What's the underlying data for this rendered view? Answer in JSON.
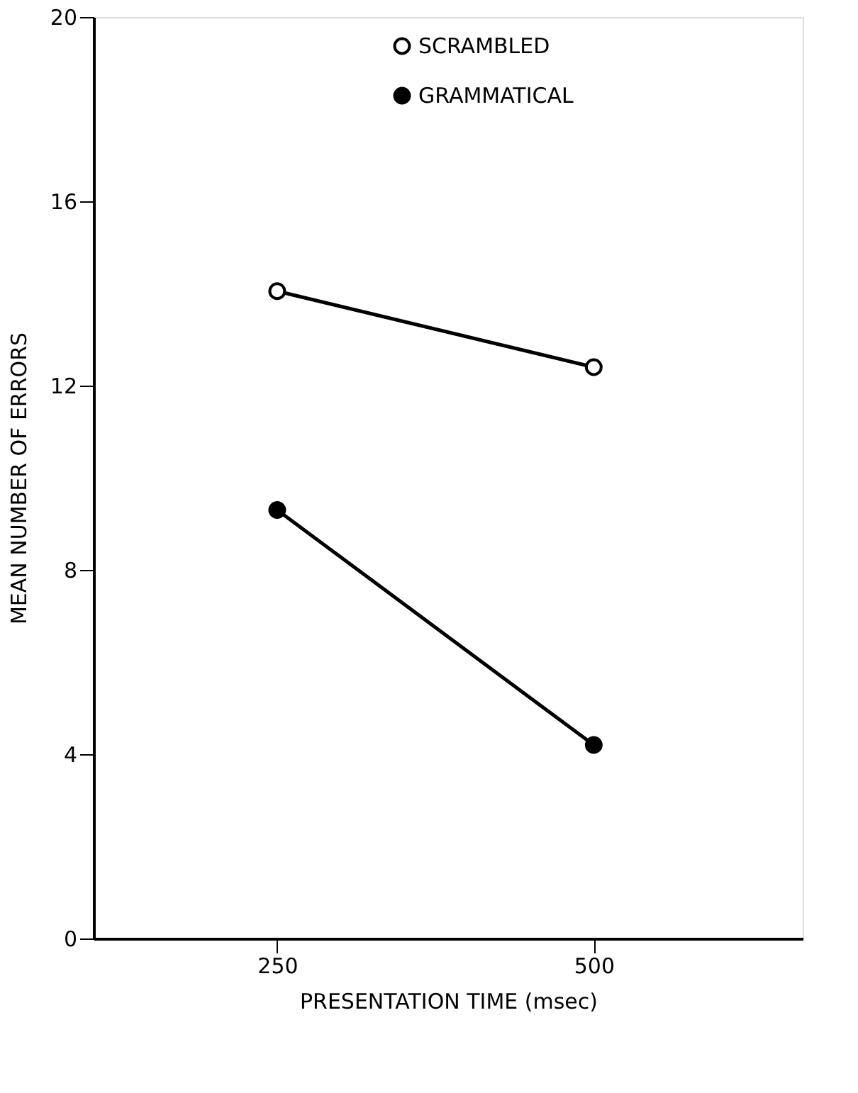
{
  "chart_data": {
    "type": "line",
    "xlabel": "PRESENTATION TIME (msec)",
    "ylabel": "MEAN NUMBER OF ERRORS",
    "x": [
      250,
      500
    ],
    "series": [
      {
        "name": "SCRAMBLED",
        "color": "#000000",
        "colors": [
          "#ffffff",
          "#ffffff"
        ],
        "values": [
          14.05,
          12.4
        ]
      },
      {
        "name": "GRAMMATICAL",
        "color": "#000000",
        "colors": [
          "#000000",
          "#000000"
        ],
        "values": [
          9.3,
          4.2
        ]
      }
    ],
    "xlim": [
      105,
      665
    ],
    "xticks": [
      250,
      500
    ],
    "ylim": [
      0,
      20
    ],
    "yticks": [
      0,
      4,
      8,
      12,
      16,
      20
    ],
    "grid": false,
    "legend": "top",
    "marker": "circle",
    "line_style": "solid"
  }
}
